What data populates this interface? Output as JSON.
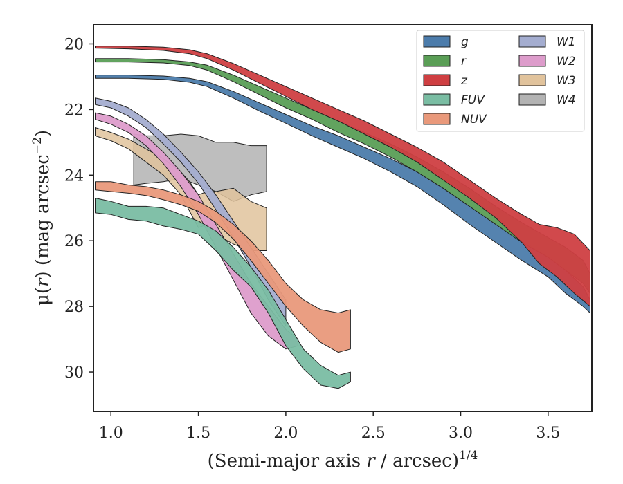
{
  "chart_data": {
    "type": "area",
    "xlabel": "(Semi-major axis r / arcsec)",
    "xlabel_parts": {
      "pre": "(Semi-major axis ",
      "var": "r",
      "post": " / arcsec)",
      "sup": "1/4"
    },
    "ylabel_parts": {
      "pre": "μ(",
      "var": "r",
      "post": ") (mag arcsec",
      "sup": "−2",
      "end": ")"
    },
    "xlim": [
      0.9,
      3.75
    ],
    "ylim": [
      31.2,
      19.4
    ],
    "y_inverted": true,
    "xticks": [
      1.0,
      1.5,
      2.0,
      2.5,
      3.0,
      3.5
    ],
    "xtick_labels": [
      "1.0",
      "1.5",
      "2.0",
      "2.5",
      "3.0",
      "3.5"
    ],
    "yticks": [
      20,
      22,
      24,
      26,
      28,
      30
    ],
    "ytick_labels": [
      "20",
      "22",
      "24",
      "26",
      "28",
      "30"
    ],
    "legend_position": "upper-right",
    "legend_columns": 2,
    "series": [
      {
        "name": "g",
        "color": "#4c7cab",
        "x": [
          0.91,
          1.1,
          1.3,
          1.45,
          1.55,
          1.7,
          1.85,
          2.0,
          2.15,
          2.3,
          2.45,
          2.6,
          2.75,
          2.9,
          3.05,
          3.2,
          3.35,
          3.5,
          3.6,
          3.7,
          3.74
        ],
        "lo": [
          20.95,
          20.95,
          20.98,
          21.05,
          21.15,
          21.45,
          21.8,
          22.15,
          22.5,
          22.8,
          23.15,
          23.5,
          23.9,
          24.4,
          24.95,
          25.5,
          26.0,
          26.5,
          26.9,
          27.4,
          27.8
        ],
        "hi": [
          21.05,
          21.05,
          21.08,
          21.17,
          21.3,
          21.65,
          22.05,
          22.42,
          22.8,
          23.15,
          23.5,
          23.9,
          24.35,
          24.9,
          25.5,
          26.05,
          26.6,
          27.1,
          27.6,
          28.0,
          28.2
        ]
      },
      {
        "name": "r",
        "color": "#5a9e56",
        "x": [
          0.91,
          1.1,
          1.3,
          1.45,
          1.55,
          1.7,
          1.85,
          2.0,
          2.15,
          2.3,
          2.45,
          2.6,
          2.75,
          2.9,
          3.05,
          3.2,
          3.35,
          3.5,
          3.6,
          3.7,
          3.74
        ],
        "lo": [
          20.45,
          20.45,
          20.48,
          20.55,
          20.65,
          20.95,
          21.3,
          21.65,
          22.0,
          22.35,
          22.7,
          23.05,
          23.45,
          23.9,
          24.4,
          24.95,
          25.45,
          25.9,
          26.2,
          26.6,
          27.0
        ],
        "hi": [
          20.55,
          20.55,
          20.58,
          20.66,
          20.8,
          21.15,
          21.55,
          21.95,
          22.3,
          22.7,
          23.05,
          23.45,
          23.9,
          24.4,
          24.95,
          25.5,
          26.05,
          26.5,
          26.9,
          27.3,
          27.6
        ]
      },
      {
        "name": "z",
        "color": "#cf3f42",
        "x": [
          0.91,
          1.1,
          1.3,
          1.45,
          1.55,
          1.7,
          1.85,
          2.0,
          2.15,
          2.3,
          2.45,
          2.6,
          2.75,
          2.9,
          3.05,
          3.2,
          3.35,
          3.45,
          3.55,
          3.65,
          3.74
        ],
        "lo": [
          20.07,
          20.07,
          20.1,
          20.18,
          20.3,
          20.6,
          20.95,
          21.3,
          21.65,
          22.0,
          22.35,
          22.75,
          23.15,
          23.6,
          24.15,
          24.7,
          25.2,
          25.5,
          25.6,
          25.8,
          26.3
        ],
        "hi": [
          20.13,
          20.15,
          20.2,
          20.3,
          20.45,
          20.8,
          21.2,
          21.6,
          22.0,
          22.35,
          22.75,
          23.15,
          23.6,
          24.15,
          24.7,
          25.3,
          26.05,
          26.7,
          27.1,
          27.6,
          28.0
        ]
      },
      {
        "name": "FUV",
        "color": "#7abda3",
        "x": [
          0.91,
          1.0,
          1.1,
          1.2,
          1.3,
          1.4,
          1.5,
          1.6,
          1.7,
          1.8,
          1.9,
          2.0,
          2.1,
          2.2,
          2.3,
          2.37
        ],
        "lo": [
          24.7,
          24.8,
          24.95,
          24.95,
          25.0,
          25.2,
          25.4,
          25.7,
          26.2,
          26.8,
          27.5,
          28.4,
          29.3,
          29.8,
          30.1,
          30.0
        ],
        "hi": [
          25.15,
          25.2,
          25.35,
          25.4,
          25.55,
          25.65,
          25.8,
          26.3,
          26.9,
          27.4,
          28.2,
          29.2,
          29.9,
          30.4,
          30.5,
          30.3
        ]
      },
      {
        "name": "NUV",
        "color": "#e9997b",
        "x": [
          0.91,
          1.0,
          1.1,
          1.2,
          1.3,
          1.4,
          1.5,
          1.6,
          1.7,
          1.8,
          1.9,
          2.0,
          2.1,
          2.2,
          2.3,
          2.37
        ],
        "lo": [
          24.2,
          24.2,
          24.3,
          24.35,
          24.45,
          24.6,
          24.8,
          25.1,
          25.5,
          26.0,
          26.6,
          27.3,
          27.8,
          28.1,
          28.2,
          28.1
        ],
        "hi": [
          24.45,
          24.5,
          24.55,
          24.62,
          24.75,
          24.9,
          25.1,
          25.45,
          25.95,
          26.6,
          27.3,
          28.0,
          28.6,
          29.1,
          29.4,
          29.3
        ]
      },
      {
        "name": "W1",
        "color": "#a4add0",
        "x": [
          0.91,
          1.0,
          1.1,
          1.2,
          1.3,
          1.4,
          1.5,
          1.6,
          1.7,
          1.8,
          1.9,
          2.0
        ],
        "lo": [
          21.65,
          21.75,
          21.95,
          22.3,
          22.75,
          23.3,
          23.9,
          24.6,
          25.4,
          26.2,
          27.0,
          27.8
        ],
        "hi": [
          21.85,
          21.95,
          22.2,
          22.55,
          23.05,
          23.6,
          24.25,
          25.05,
          25.9,
          26.8,
          27.8,
          28.6
        ]
      },
      {
        "name": "W2",
        "color": "#dd9ccb",
        "x": [
          0.91,
          1.0,
          1.1,
          1.2,
          1.3,
          1.4,
          1.5,
          1.6,
          1.7,
          1.8,
          1.9,
          2.0,
          2.07
        ],
        "lo": [
          22.1,
          22.2,
          22.45,
          22.8,
          23.3,
          23.9,
          24.6,
          25.5,
          26.4,
          27.3,
          28.0,
          28.7,
          29.0
        ],
        "hi": [
          22.3,
          22.45,
          22.7,
          23.1,
          23.65,
          24.35,
          25.2,
          26.2,
          27.2,
          28.2,
          28.9,
          29.3,
          29.2
        ]
      },
      {
        "name": "W3",
        "color": "#e1c39c",
        "x": [
          0.91,
          1.0,
          1.1,
          1.2,
          1.3,
          1.4,
          1.45,
          1.5,
          1.55,
          1.6,
          1.7,
          1.8,
          1.89
        ],
        "lo": [
          22.55,
          22.7,
          22.9,
          23.2,
          23.5,
          23.9,
          24.2,
          24.6,
          24.5,
          24.5,
          24.4,
          24.8,
          25.0
        ],
        "hi": [
          22.8,
          22.95,
          23.2,
          23.6,
          24.0,
          24.6,
          25.1,
          25.6,
          25.5,
          25.8,
          26.1,
          26.3,
          26.3
        ]
      },
      {
        "name": "W4",
        "color": "#b3b3b3",
        "x": [
          1.13,
          1.2,
          1.3,
          1.4,
          1.5,
          1.6,
          1.7,
          1.8,
          1.89
        ],
        "lo": [
          22.75,
          22.8,
          22.8,
          22.75,
          22.8,
          23.0,
          23.0,
          23.1,
          23.1
        ],
        "hi": [
          24.3,
          24.25,
          24.2,
          24.1,
          24.3,
          24.5,
          24.8,
          24.6,
          24.5
        ]
      }
    ]
  }
}
